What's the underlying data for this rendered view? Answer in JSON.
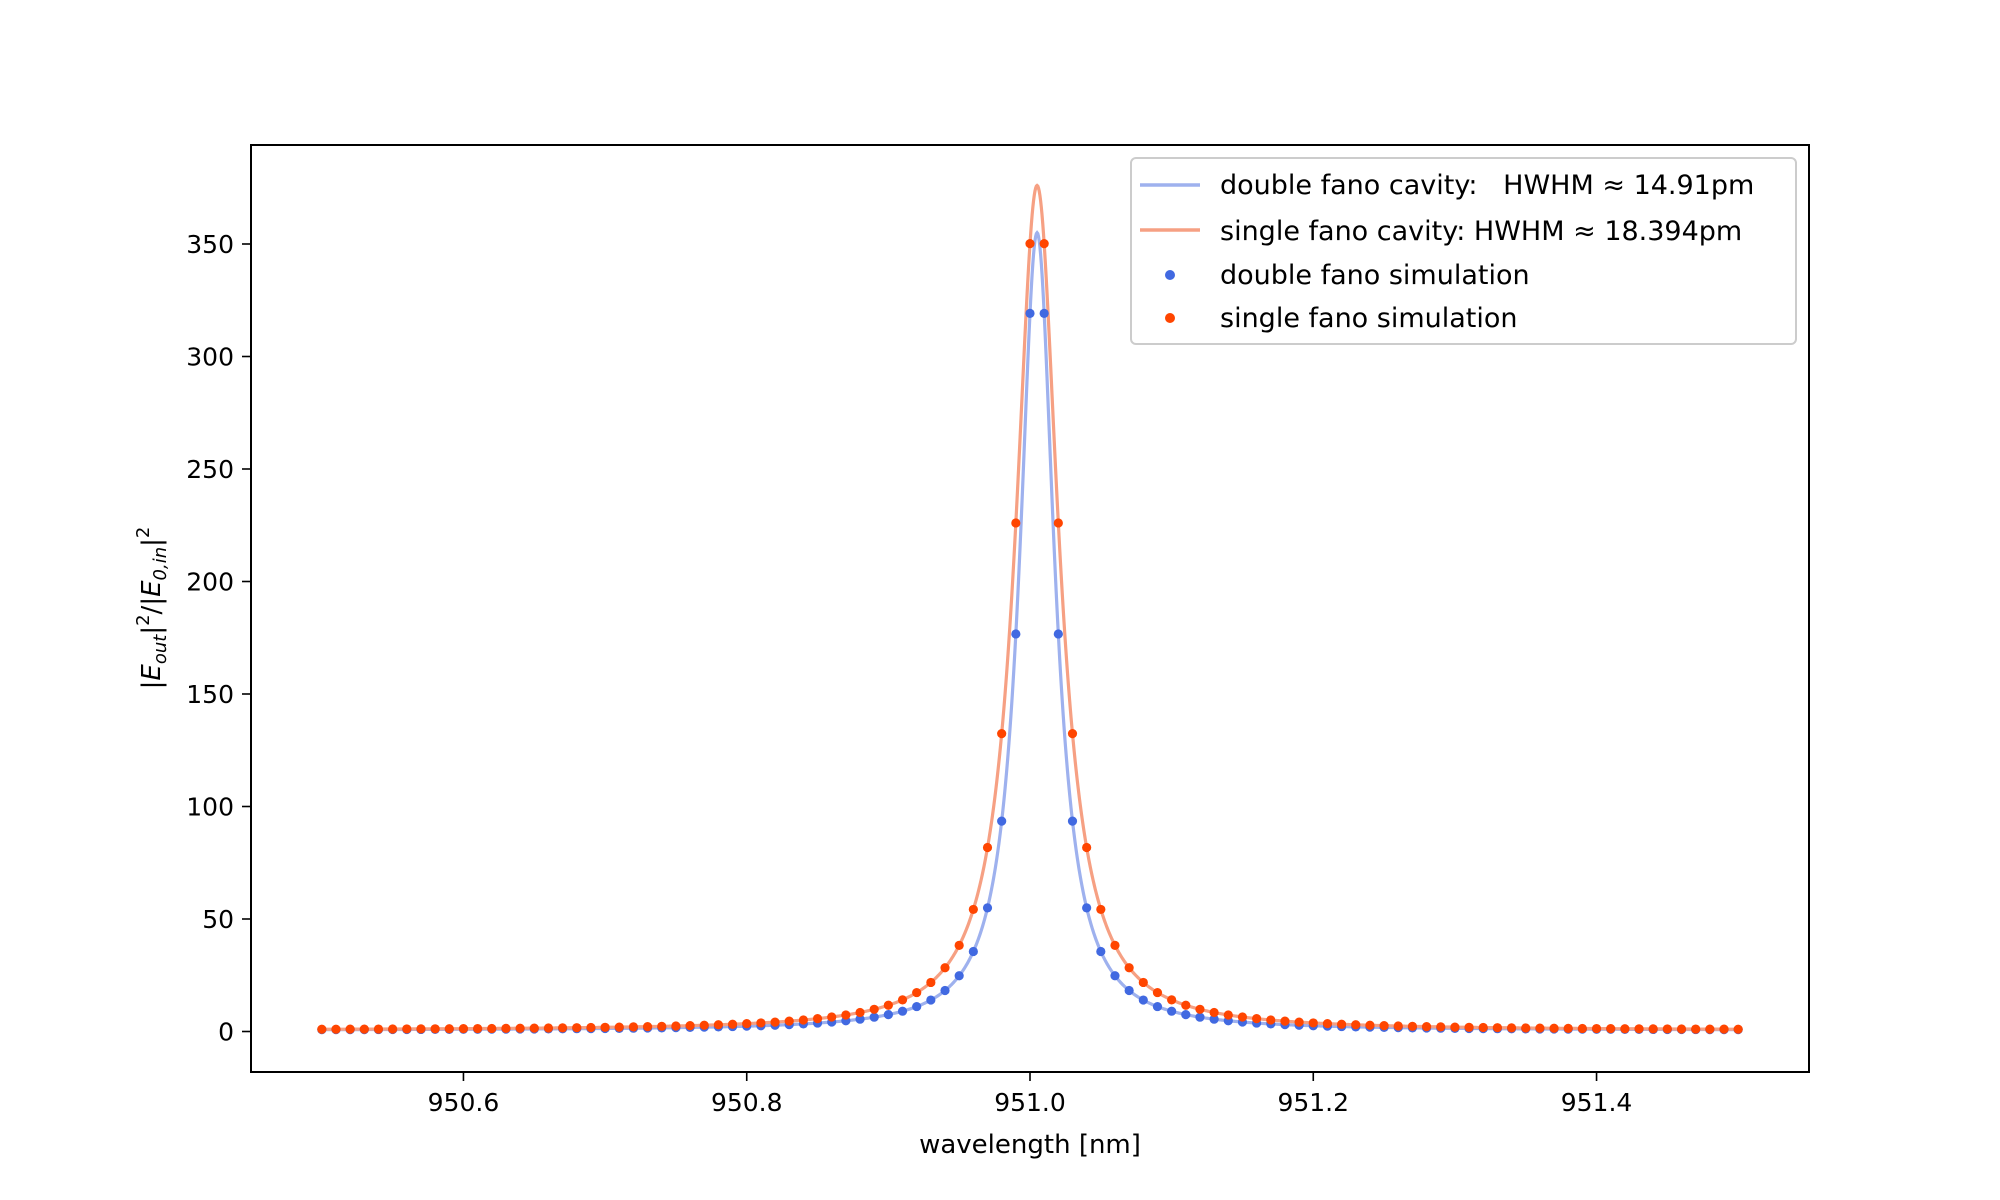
{
  "chart_data": {
    "type": "line",
    "title": "",
    "xlabel": "wavelength [nm]",
    "ylabel": {
      "E": "E",
      "out_sub": "out",
      "in_sub": "0,in",
      "sq": "2",
      "bar": "|",
      "slash": "/"
    },
    "xlim": [
      950.45,
      951.55
    ],
    "ylim": [
      -18,
      394
    ],
    "xticks": [
      950.6,
      950.8,
      951.0,
      951.2,
      951.4
    ],
    "xtick_labels": [
      "950.6",
      "950.8",
      "951.0",
      "951.2",
      "951.4"
    ],
    "yticks": [
      0,
      50,
      100,
      150,
      200,
      250,
      300,
      350
    ],
    "ytick_labels": [
      "0",
      "50",
      "100",
      "150",
      "200",
      "250",
      "300",
      "350"
    ],
    "grid": false,
    "legend_position": "top-right",
    "colors": {
      "double_line": "#9eb1ee",
      "single_line": "#f6a083",
      "double_points": "#4169e1",
      "single_points": "#ff4500"
    },
    "series": [
      {
        "name": "double fano cavity:   HWHM ≈ 14.91pm",
        "kind": "line",
        "peak_wavelength": 951.005,
        "peak_value": 355,
        "hwhm_nm": 0.01491,
        "baseline": 0.5
      },
      {
        "name": "single fano cavity: HWHM ≈ 18.394pm",
        "kind": "line",
        "peak_wavelength": 951.005,
        "peak_value": 376,
        "hwhm_nm": 0.018394,
        "baseline": 0.5
      },
      {
        "name": "double fano simulation",
        "kind": "scatter",
        "x_start": 950.5,
        "x_end": 951.5,
        "x_step": 0.01
      },
      {
        "name": "single fano simulation",
        "kind": "scatter",
        "x_start": 950.5,
        "x_end": 951.5,
        "x_step": 0.01
      }
    ]
  }
}
